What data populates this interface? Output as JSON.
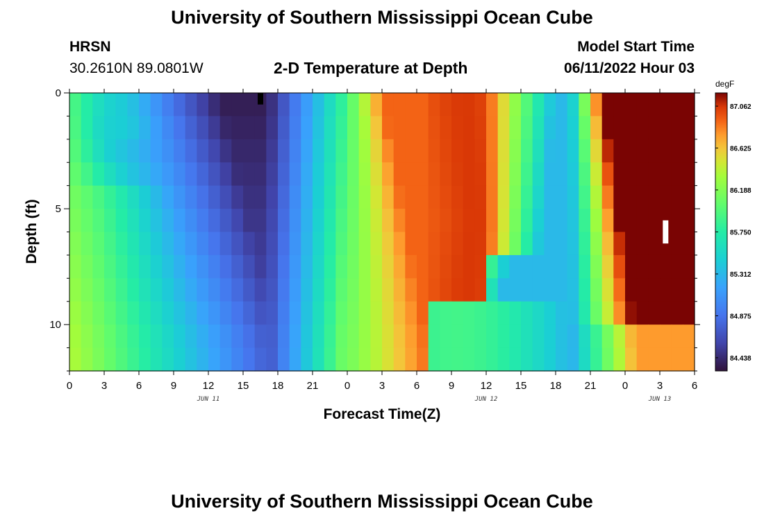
{
  "header": {
    "title": "University of Southern Mississippi Ocean Cube",
    "station": "HRSN",
    "coords": "30.2610N  89.0801W",
    "model_label": "Model Start Time",
    "model_time": "06/11/2022 Hour 03",
    "plot_title": "2-D Temperature at Depth"
  },
  "footer": {
    "title": "University of Southern Mississippi Ocean Cube"
  },
  "chart_data": {
    "type": "heatmap",
    "title": "2-D Temperature at Depth",
    "xlabel": "Forecast Time(Z)",
    "ylabel": "Depth (ft)",
    "x_hours_range": [
      0,
      54
    ],
    "x_tick_labels": [
      "0",
      "3",
      "6",
      "9",
      "12",
      "15",
      "18",
      "21",
      "0",
      "3",
      "6",
      "9",
      "12",
      "15",
      "18",
      "21",
      "0",
      "3",
      "6"
    ],
    "date_labels": [
      {
        "text": "JUN 11",
        "hour": 12
      },
      {
        "text": "JUN 12",
        "hour": 36
      },
      {
        "text": "JUN 13",
        "hour": 51
      }
    ],
    "y_range_ft": [
      0,
      12
    ],
    "y_tick_labels": [
      "0",
      "5",
      "10"
    ],
    "y_tick_values": [
      0,
      5,
      10
    ],
    "colorbar": {
      "unit": "degF",
      "min": 84.3,
      "max": 87.2,
      "labels": [
        "87.062",
        "86.625",
        "86.188",
        "85.750",
        "85.312",
        "84.875",
        "84.438"
      ],
      "label_values": [
        87.062,
        86.625,
        86.188,
        85.75,
        85.312,
        84.875,
        84.438
      ]
    },
    "field_model": {
      "description": "Temperature approximated as a function of hour and depth",
      "depth_rows": 12,
      "hour_columns": 54,
      "minima_hours": [
        17,
        43
      ],
      "maxima_hours": [
        4,
        35,
        52
      ]
    },
    "markers": [
      {
        "color": "#000000",
        "hour": 16.5,
        "depth_ft": [
          0.0,
          0.5
        ]
      },
      {
        "color": "#ffffff",
        "hour": 51.5,
        "depth_ft": [
          5.5,
          6.5
        ]
      }
    ]
  }
}
